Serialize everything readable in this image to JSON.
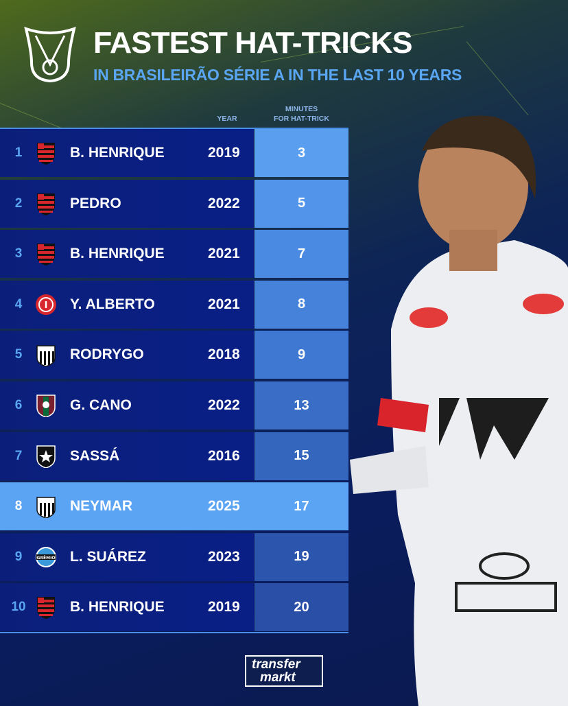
{
  "header": {
    "title": "FASTEST HAT-TRICKS",
    "subtitle": "IN BRASILEIRÃO SÉRIE A IN THE LAST 10 YEARS",
    "logo_icon": "brasileirao-trophy-logo"
  },
  "columns": {
    "year": "YEAR",
    "minutes_line1": "MINUTES",
    "minutes_line2": "FOR HAT-TRICK"
  },
  "colors": {
    "accent": "#5aa6f2",
    "row_bg": "#0b1f7a",
    "highlight": "#5ba4f4"
  },
  "rows": [
    {
      "rank": "1",
      "club": "flamengo",
      "player": "B. HENRIQUE",
      "year": "2019",
      "minutes": "3"
    },
    {
      "rank": "2",
      "club": "flamengo",
      "player": "PEDRO",
      "year": "2022",
      "minutes": "5"
    },
    {
      "rank": "3",
      "club": "flamengo",
      "player": "B. HENRIQUE",
      "year": "2021",
      "minutes": "7"
    },
    {
      "rank": "4",
      "club": "internacional",
      "player": "Y. ALBERTO",
      "year": "2021",
      "minutes": "8"
    },
    {
      "rank": "5",
      "club": "santos",
      "player": "RODRYGO",
      "year": "2018",
      "minutes": "9"
    },
    {
      "rank": "6",
      "club": "fluminense",
      "player": "G. CANO",
      "year": "2022",
      "minutes": "13"
    },
    {
      "rank": "7",
      "club": "botafogo",
      "player": "SASSÁ",
      "year": "2016",
      "minutes": "15"
    },
    {
      "rank": "8",
      "club": "santos",
      "player": "NEYMAR",
      "year": "2025",
      "minutes": "17",
      "highlighted": true
    },
    {
      "rank": "9",
      "club": "gremio",
      "player": "L. SUÁREZ",
      "year": "2023",
      "minutes": "19"
    },
    {
      "rank": "10",
      "club": "flamengo",
      "player": "B. HENRIQUE",
      "year": "2019",
      "minutes": "20"
    }
  ],
  "footer": {
    "brand_line1": "transfer",
    "brand_line2": "markt"
  }
}
